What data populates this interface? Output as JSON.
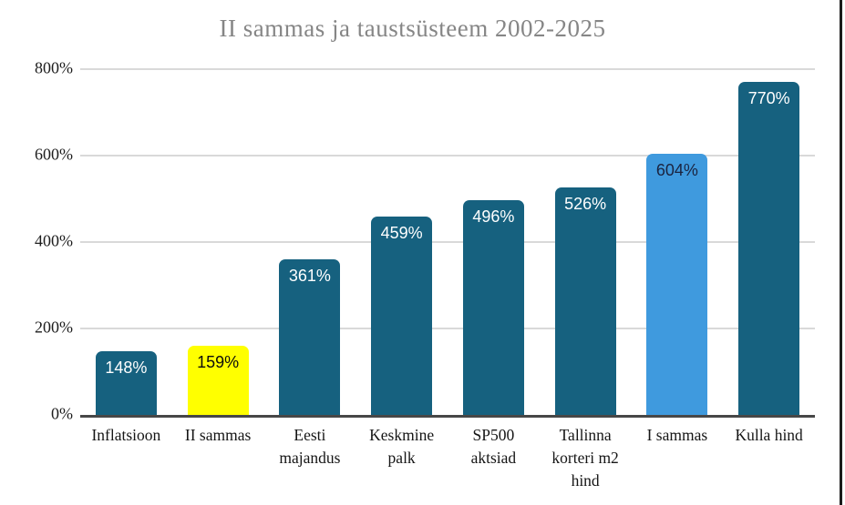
{
  "window": {
    "right_border_color": "#1c1c1c",
    "background_color": "#ffffff"
  },
  "chart_data": {
    "type": "bar",
    "title": "II sammas ja taustsüsteem 2002-2025",
    "categories": [
      "Inflatsioon",
      "II sammas",
      "Eesti majandus",
      "Keskmine palk",
      "SP500 aktsiad",
      "Tallinna korteri m2 hind",
      "I sammas",
      "Kulla hind"
    ],
    "values": [
      148,
      159,
      361,
      459,
      496,
      526,
      604,
      770
    ],
    "value_labels": [
      "148%",
      "159%",
      "361%",
      "459%",
      "496%",
      "526%",
      "604%",
      "770%"
    ],
    "bar_colors": [
      "#16617f",
      "#ffff00",
      "#16617f",
      "#16617f",
      "#16617f",
      "#16617f",
      "#3f9ade",
      "#16617f"
    ],
    "value_label_colors": [
      "#ffffff",
      "#0d0d0d",
      "#ffffff",
      "#ffffff",
      "#ffffff",
      "#ffffff",
      "#1b2440",
      "#ffffff"
    ],
    "xlabel": "",
    "ylabel": "",
    "ylim": [
      0,
      800
    ],
    "yticks": [
      {
        "value": 0,
        "label": "0%"
      },
      {
        "value": 200,
        "label": "200%"
      },
      {
        "value": 400,
        "label": "400%"
      },
      {
        "value": 600,
        "label": "600%"
      },
      {
        "value": 800,
        "label": "800%"
      }
    ],
    "grid": true,
    "legend": false,
    "colors": {
      "bar_default": "#16617f",
      "bar_highlight_yellow": "#ffff00",
      "bar_highlight_blue": "#3f9ade",
      "gridline": "#d9d9d9",
      "axis_line": "#474747",
      "title_text": "#868686"
    }
  }
}
